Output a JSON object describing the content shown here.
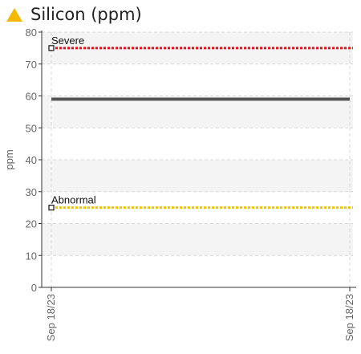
{
  "header": {
    "title": "Silicon (ppm)",
    "icon": "warning-triangle-icon",
    "icon_color": "#f5b800"
  },
  "chart_data": {
    "type": "line",
    "title": "Silicon (ppm)",
    "xlabel": "",
    "ylabel": "ppm",
    "ylim": [
      0,
      80
    ],
    "yticks": [
      0,
      10,
      20,
      30,
      40,
      50,
      60,
      70,
      80
    ],
    "xticks": [
      "Sep 18/23",
      "Sep 18/23"
    ],
    "grid": true,
    "series": [
      {
        "values": [
          59,
          59
        ],
        "color": "#555555",
        "style": "solid"
      }
    ],
    "thresholds": [
      {
        "label": "Severe",
        "value": 75,
        "color": "#e8121a"
      },
      {
        "label": "Abnormal",
        "value": 25,
        "color": "#f5c400"
      }
    ]
  }
}
